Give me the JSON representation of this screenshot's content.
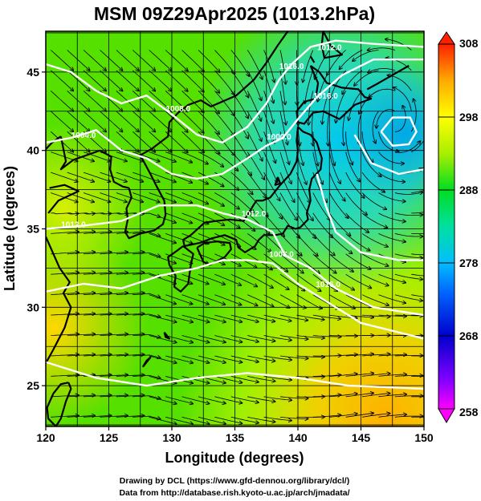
{
  "chart_data": {
    "type": "heatmap",
    "title": "MSM 09Z29Apr2025 (1013.2hPa)",
    "xlabel": "Longitude (degrees)",
    "ylabel": "Latitude  (degrees)",
    "xlim": [
      120,
      150
    ],
    "ylim": [
      22.4,
      47.6
    ],
    "x_ticks": [
      120,
      125,
      130,
      135,
      140,
      145,
      150
    ],
    "y_ticks": [
      25,
      30,
      35,
      40,
      45
    ],
    "grid": true,
    "colorbar": {
      "min": 258,
      "max": 308,
      "ticks": [
        258,
        268,
        278,
        288,
        298,
        308
      ],
      "placement": "right"
    },
    "contour_labels": [
      {
        "text": "1012.0",
        "lon": 142.5,
        "lat": 46.4
      },
      {
        "text": "1016.0",
        "lon": 139.5,
        "lat": 45.2
      },
      {
        "text": "1008.0",
        "lon": 130.5,
        "lat": 42.5
      },
      {
        "text": "1004.0",
        "lon": 123.0,
        "lat": 40.8
      },
      {
        "text": "1000.0",
        "lon": 138.5,
        "lat": 40.7
      },
      {
        "text": "1016.0",
        "lon": 142.2,
        "lat": 43.3
      },
      {
        "text": "1012.0",
        "lon": 122.2,
        "lat": 35.1
      },
      {
        "text": "1008.0",
        "lon": 138.7,
        "lat": 33.2
      },
      {
        "text": "1016.0",
        "lon": 142.4,
        "lat": 31.3
      },
      {
        "text": "1012.0",
        "lon": 136.5,
        "lat": 35.8
      }
    ]
  },
  "footer": {
    "line1": "Drawing by DCL (https://www.gfd-dennou.org/library/dcl/)",
    "line2": "Data from http://database.rish.kyoto-u.ac.jp/arch/jmadata/"
  },
  "colors": {
    "cb_bottom": "#ff00ff",
    "cb_cold": "#0000cd",
    "cb_cool": "#00bfff",
    "cb_mid": "#00ff44",
    "cb_warm": "#ffff00",
    "cb_top": "#ff2000",
    "land_outline": "#000000",
    "contour": "#ffffff"
  }
}
